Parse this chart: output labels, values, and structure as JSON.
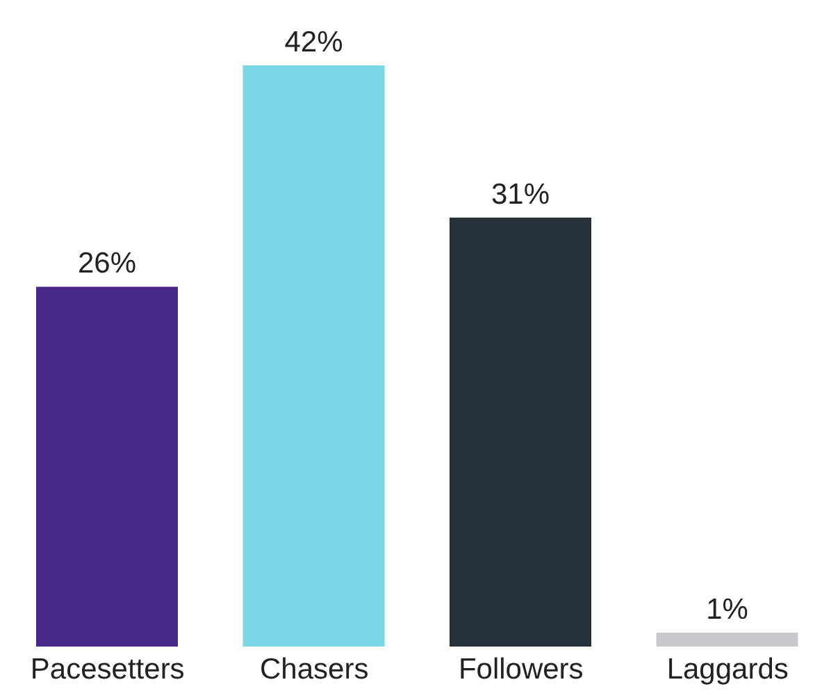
{
  "chart_data": {
    "type": "bar",
    "categories": [
      "Pacesetters",
      "Chasers",
      "Followers",
      "Laggards"
    ],
    "values": [
      26,
      42,
      31,
      1
    ],
    "colors": [
      "#472886",
      "#7ad8e6",
      "#26313a",
      "#c8c8cc"
    ],
    "value_labels": [
      "26%",
      "42%",
      "31%",
      "1%"
    ],
    "legend": false,
    "grid": false
  }
}
